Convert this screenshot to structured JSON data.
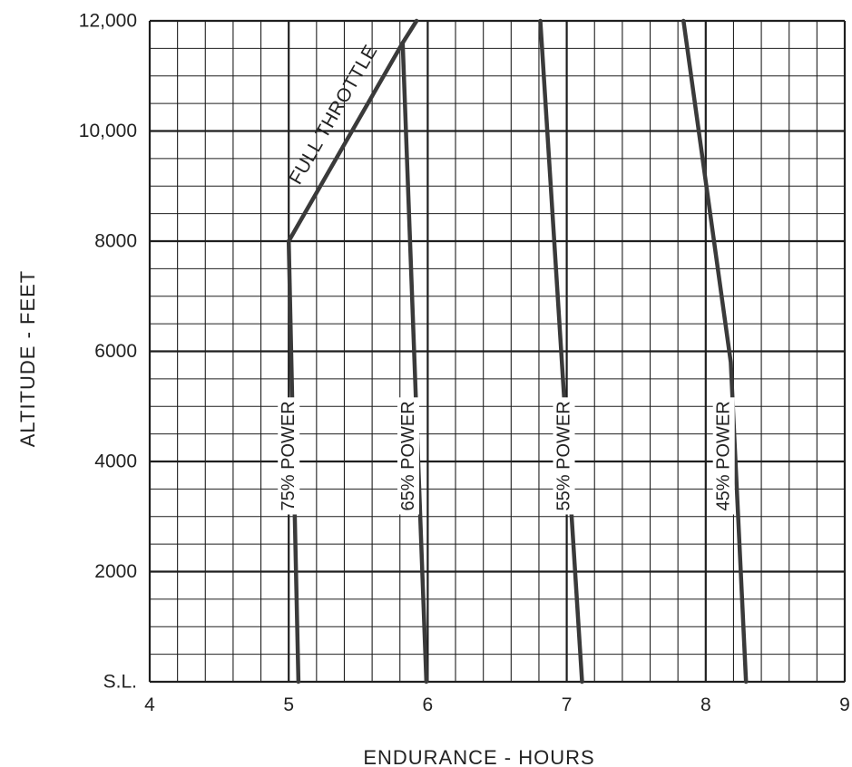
{
  "chart_data": {
    "type": "line",
    "title": "",
    "xlabel": "ENDURANCE - HOURS",
    "ylabel": "ALTITUDE - FEET",
    "xlim": [
      4,
      9
    ],
    "ylim": [
      0,
      12000
    ],
    "x_ticks": [
      4,
      5,
      6,
      7,
      8,
      9
    ],
    "x_tick_labels": [
      "4",
      "5",
      "6",
      "7",
      "8",
      "9"
    ],
    "y_ticks": [
      0,
      2000,
      4000,
      6000,
      8000,
      10000,
      12000
    ],
    "y_tick_labels": [
      "S.L.",
      "2000",
      "4000",
      "6000",
      "8000",
      "10,000",
      "12,000"
    ],
    "grid": true,
    "grid_minor_x": 0.2,
    "grid_minor_y": 500,
    "series": [
      {
        "name": "75% POWER",
        "x": [
          5.07,
          5.0
        ],
        "y": [
          0,
          8000
        ]
      },
      {
        "name": "65% POWER",
        "x": [
          5.99,
          5.82
        ],
        "y": [
          0,
          11600
        ]
      },
      {
        "name": "55% POWER",
        "x": [
          7.11,
          6.81
        ],
        "y": [
          0,
          12000
        ]
      },
      {
        "name": "45% POWER",
        "x": [
          8.29,
          8.18,
          7.84
        ],
        "y": [
          0,
          5800,
          12000
        ]
      },
      {
        "name": "FULL THROTTLE",
        "x": [
          5.0,
          5.82,
          5.92
        ],
        "y": [
          8000,
          11600,
          12000
        ]
      }
    ],
    "label_positions": [
      {
        "series": "75% POWER",
        "x": 5.0,
        "y": 4100
      },
      {
        "series": "65% POWER",
        "x": 5.86,
        "y": 4100
      },
      {
        "series": "55% POWER",
        "x": 6.98,
        "y": 4100
      },
      {
        "series": "45% POWER",
        "x": 8.13,
        "y": 4100
      },
      {
        "series": "FULL THROTTLE",
        "x": 5.39,
        "y": 10200
      }
    ],
    "line_color": "#3a3a3a",
    "grid_color": "#1f1f1f"
  }
}
